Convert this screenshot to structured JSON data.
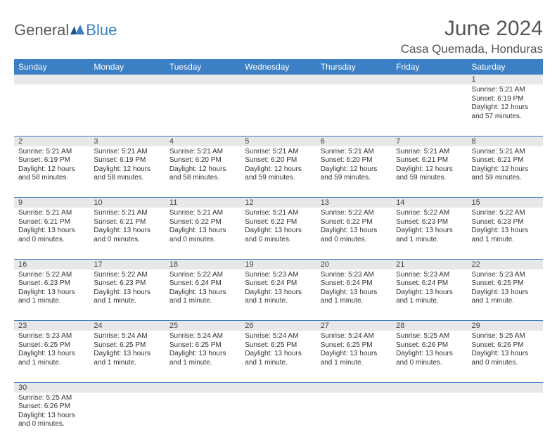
{
  "branding": {
    "logo_part1": "General",
    "logo_part2": "Blue",
    "logo_color1": "#5a5a5a",
    "logo_color2": "#3b7fc4"
  },
  "header": {
    "title": "June 2024",
    "location": "Casa Quemada, Honduras"
  },
  "calendar": {
    "day_headers": [
      "Sunday",
      "Monday",
      "Tuesday",
      "Wednesday",
      "Thursday",
      "Friday",
      "Saturday"
    ],
    "header_bg": "#3b7fc4",
    "header_text_color": "#ffffff",
    "daynum_bg": "#e8e8e8",
    "row_border_color": "#3b7fc4",
    "body_font_size": 10,
    "weeks": [
      {
        "days": [
          null,
          null,
          null,
          null,
          null,
          null,
          {
            "num": "1",
            "sunrise": "Sunrise: 5:21 AM",
            "sunset": "Sunset: 6:19 PM",
            "daylight": "Daylight: 12 hours and 57 minutes."
          }
        ]
      },
      {
        "days": [
          {
            "num": "2",
            "sunrise": "Sunrise: 5:21 AM",
            "sunset": "Sunset: 6:19 PM",
            "daylight": "Daylight: 12 hours and 58 minutes."
          },
          {
            "num": "3",
            "sunrise": "Sunrise: 5:21 AM",
            "sunset": "Sunset: 6:19 PM",
            "daylight": "Daylight: 12 hours and 58 minutes."
          },
          {
            "num": "4",
            "sunrise": "Sunrise: 5:21 AM",
            "sunset": "Sunset: 6:20 PM",
            "daylight": "Daylight: 12 hours and 58 minutes."
          },
          {
            "num": "5",
            "sunrise": "Sunrise: 5:21 AM",
            "sunset": "Sunset: 6:20 PM",
            "daylight": "Daylight: 12 hours and 59 minutes."
          },
          {
            "num": "6",
            "sunrise": "Sunrise: 5:21 AM",
            "sunset": "Sunset: 6:20 PM",
            "daylight": "Daylight: 12 hours and 59 minutes."
          },
          {
            "num": "7",
            "sunrise": "Sunrise: 5:21 AM",
            "sunset": "Sunset: 6:21 PM",
            "daylight": "Daylight: 12 hours and 59 minutes."
          },
          {
            "num": "8",
            "sunrise": "Sunrise: 5:21 AM",
            "sunset": "Sunset: 6:21 PM",
            "daylight": "Daylight: 12 hours and 59 minutes."
          }
        ]
      },
      {
        "days": [
          {
            "num": "9",
            "sunrise": "Sunrise: 5:21 AM",
            "sunset": "Sunset: 6:21 PM",
            "daylight": "Daylight: 13 hours and 0 minutes."
          },
          {
            "num": "10",
            "sunrise": "Sunrise: 5:21 AM",
            "sunset": "Sunset: 6:21 PM",
            "daylight": "Daylight: 13 hours and 0 minutes."
          },
          {
            "num": "11",
            "sunrise": "Sunrise: 5:21 AM",
            "sunset": "Sunset: 6:22 PM",
            "daylight": "Daylight: 13 hours and 0 minutes."
          },
          {
            "num": "12",
            "sunrise": "Sunrise: 5:21 AM",
            "sunset": "Sunset: 6:22 PM",
            "daylight": "Daylight: 13 hours and 0 minutes."
          },
          {
            "num": "13",
            "sunrise": "Sunrise: 5:22 AM",
            "sunset": "Sunset: 6:22 PM",
            "daylight": "Daylight: 13 hours and 0 minutes."
          },
          {
            "num": "14",
            "sunrise": "Sunrise: 5:22 AM",
            "sunset": "Sunset: 6:23 PM",
            "daylight": "Daylight: 13 hours and 1 minute."
          },
          {
            "num": "15",
            "sunrise": "Sunrise: 5:22 AM",
            "sunset": "Sunset: 6:23 PM",
            "daylight": "Daylight: 13 hours and 1 minute."
          }
        ]
      },
      {
        "days": [
          {
            "num": "16",
            "sunrise": "Sunrise: 5:22 AM",
            "sunset": "Sunset: 6:23 PM",
            "daylight": "Daylight: 13 hours and 1 minute."
          },
          {
            "num": "17",
            "sunrise": "Sunrise: 5:22 AM",
            "sunset": "Sunset: 6:23 PM",
            "daylight": "Daylight: 13 hours and 1 minute."
          },
          {
            "num": "18",
            "sunrise": "Sunrise: 5:22 AM",
            "sunset": "Sunset: 6:24 PM",
            "daylight": "Daylight: 13 hours and 1 minute."
          },
          {
            "num": "19",
            "sunrise": "Sunrise: 5:23 AM",
            "sunset": "Sunset: 6:24 PM",
            "daylight": "Daylight: 13 hours and 1 minute."
          },
          {
            "num": "20",
            "sunrise": "Sunrise: 5:23 AM",
            "sunset": "Sunset: 6:24 PM",
            "daylight": "Daylight: 13 hours and 1 minute."
          },
          {
            "num": "21",
            "sunrise": "Sunrise: 5:23 AM",
            "sunset": "Sunset: 6:24 PM",
            "daylight": "Daylight: 13 hours and 1 minute."
          },
          {
            "num": "22",
            "sunrise": "Sunrise: 5:23 AM",
            "sunset": "Sunset: 6:25 PM",
            "daylight": "Daylight: 13 hours and 1 minute."
          }
        ]
      },
      {
        "days": [
          {
            "num": "23",
            "sunrise": "Sunrise: 5:23 AM",
            "sunset": "Sunset: 6:25 PM",
            "daylight": "Daylight: 13 hours and 1 minute."
          },
          {
            "num": "24",
            "sunrise": "Sunrise: 5:24 AM",
            "sunset": "Sunset: 6:25 PM",
            "daylight": "Daylight: 13 hours and 1 minute."
          },
          {
            "num": "25",
            "sunrise": "Sunrise: 5:24 AM",
            "sunset": "Sunset: 6:25 PM",
            "daylight": "Daylight: 13 hours and 1 minute."
          },
          {
            "num": "26",
            "sunrise": "Sunrise: 5:24 AM",
            "sunset": "Sunset: 6:25 PM",
            "daylight": "Daylight: 13 hours and 1 minute."
          },
          {
            "num": "27",
            "sunrise": "Sunrise: 5:24 AM",
            "sunset": "Sunset: 6:25 PM",
            "daylight": "Daylight: 13 hours and 1 minute."
          },
          {
            "num": "28",
            "sunrise": "Sunrise: 5:25 AM",
            "sunset": "Sunset: 6:26 PM",
            "daylight": "Daylight: 13 hours and 0 minutes."
          },
          {
            "num": "29",
            "sunrise": "Sunrise: 5:25 AM",
            "sunset": "Sunset: 6:26 PM",
            "daylight": "Daylight: 13 hours and 0 minutes."
          }
        ]
      },
      {
        "days": [
          {
            "num": "30",
            "sunrise": "Sunrise: 5:25 AM",
            "sunset": "Sunset: 6:26 PM",
            "daylight": "Daylight: 13 hours and 0 minutes."
          },
          null,
          null,
          null,
          null,
          null,
          null
        ]
      }
    ]
  }
}
